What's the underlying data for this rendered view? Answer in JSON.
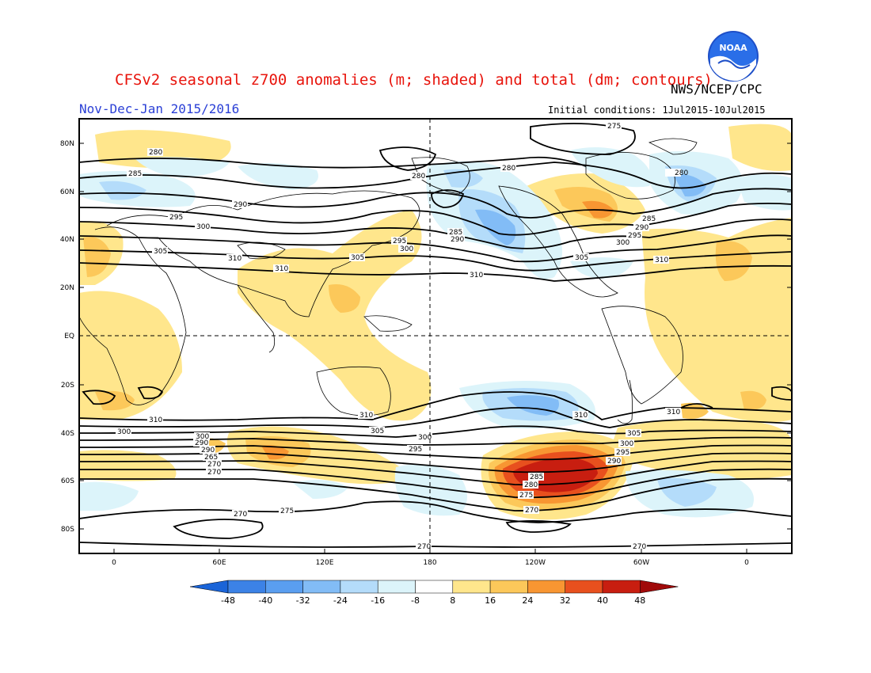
{
  "title": "CFSv2 seasonal z700 anomalies (m; shaded) and total (dm; contours)",
  "period": "Nov-Dec-Jan 2015/2016",
  "agency": "NWS/NCEP/CPC",
  "initial_conditions": "Initial conditions: 1Jul2015-10Jul2015",
  "logo_text": "NOAA",
  "lat_labels": [
    "80N",
    "60N",
    "40N",
    "20N",
    "EQ",
    "20S",
    "40S",
    "60S",
    "80S"
  ],
  "lon_labels": [
    "0",
    "60E",
    "120E",
    "180",
    "120W",
    "60W",
    "0"
  ],
  "colorbar": {
    "labels": [
      "-48",
      "-40",
      "-32",
      "-24",
      "-16",
      "-8",
      "8",
      "16",
      "24",
      "32",
      "40",
      "48"
    ],
    "colors": [
      "#1a64d8",
      "#3c82e6",
      "#5a9ef0",
      "#82bcf6",
      "#b4dcfa",
      "#dcf4fa",
      "#ffffff",
      "#ffe68c",
      "#fcc85a",
      "#f89632",
      "#e8501e",
      "#c81e10",
      "#a00a0a"
    ]
  },
  "contour_labels": [
    "275",
    "280",
    "280",
    "280",
    "285",
    "290",
    "295",
    "300",
    "305",
    "310",
    "310",
    "310",
    "310",
    "285",
    "290",
    "295",
    "300",
    "305",
    "300",
    "305",
    "310",
    "285",
    "290",
    "295",
    "300",
    "305",
    "310",
    "310",
    "300",
    "305",
    "290",
    "295",
    "280",
    "270",
    "275",
    "270",
    "270",
    "270",
    "275",
    "280",
    "285",
    "290",
    "295",
    "300",
    "305",
    "310",
    "310",
    "265",
    "280",
    "270",
    "275",
    "285",
    "290"
  ]
}
